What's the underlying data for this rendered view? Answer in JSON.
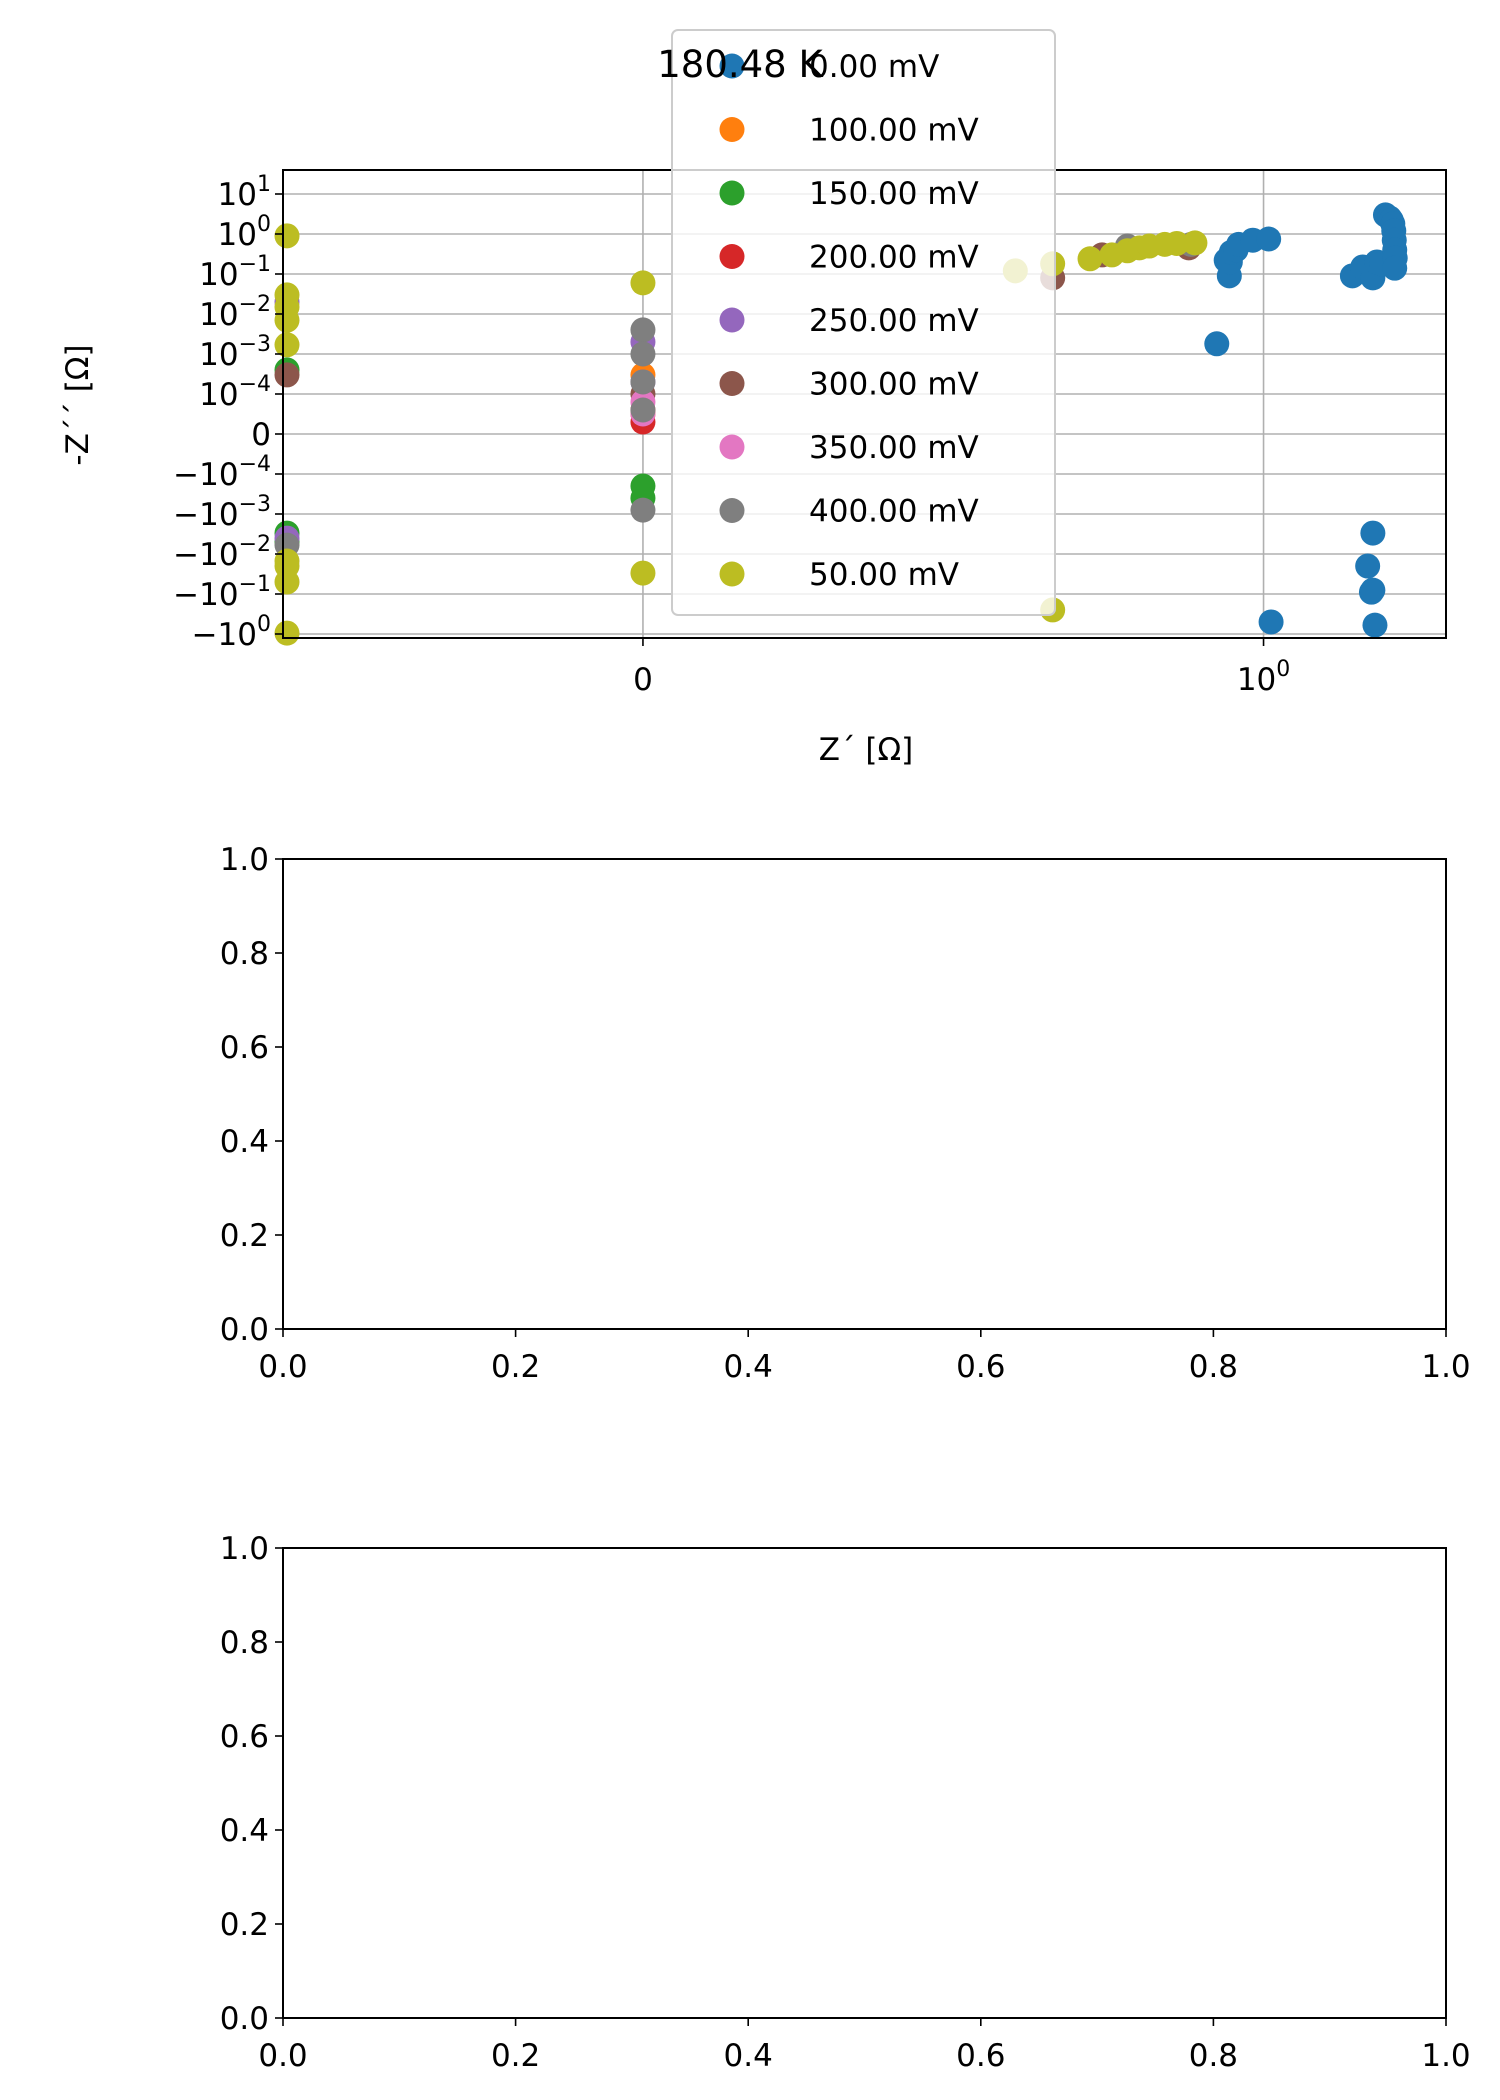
{
  "chart_data": [
    {
      "type": "scatter",
      "title": "180.48 K",
      "xlabel": "Z´ [Ω]",
      "ylabel": "-Z´´ [Ω]",
      "xscale": "symlog",
      "yscale": "symlog",
      "grid": true,
      "legend_position": "upper-center",
      "x_ticks": [
        {
          "value": 0,
          "label": "0"
        },
        {
          "value": 1,
          "label": "10",
          "exp": "0"
        }
      ],
      "y_ticks": [
        {
          "value": 10,
          "label": "10",
          "exp": "1"
        },
        {
          "value": 1,
          "label": "10",
          "exp": "0"
        },
        {
          "value": 0.1,
          "label": "10",
          "exp": "−1"
        },
        {
          "value": 0.01,
          "label": "10",
          "exp": "−2"
        },
        {
          "value": 0.001,
          "label": "10",
          "exp": "−3"
        },
        {
          "value": 0.0001,
          "label": "10",
          "exp": "−4"
        },
        {
          "value": 0,
          "label": "0"
        },
        {
          "value": -0.0001,
          "label": "−10",
          "exp": "−4"
        },
        {
          "value": -0.001,
          "label": "−10",
          "exp": "−3"
        },
        {
          "value": -0.01,
          "label": "−10",
          "exp": "−2"
        },
        {
          "value": -0.1,
          "label": "−10",
          "exp": "−1"
        },
        {
          "value": -1,
          "label": "−10",
          "exp": "0"
        }
      ],
      "series": [
        {
          "name": "0.00 mV",
          "color": "#1f77b4",
          "points": [
            [
              0.42,
              0.0018
            ],
            [
              0.5,
              0.22
            ],
            [
              0.53,
              0.09
            ],
            [
              0.54,
              0.2
            ],
            [
              0.55,
              0.35
            ],
            [
              0.6,
              0.4
            ],
            [
              0.63,
              0.55
            ],
            [
              0.82,
              0.7
            ],
            [
              1.1,
              0.75
            ],
            [
              5.2,
              0.09
            ],
            [
              6.3,
              0.15
            ],
            [
              7.6,
              0.08
            ],
            [
              8.2,
              0.2
            ],
            [
              9.6,
              3.0
            ],
            [
              9.0,
              0.18
            ],
            [
              10.4,
              2.5
            ],
            [
              10.7,
              2.2
            ],
            [
              11.0,
              1.8
            ],
            [
              11.2,
              1.2
            ],
            [
              11.3,
              0.7
            ],
            [
              11.4,
              0.4
            ],
            [
              11.5,
              0.25
            ],
            [
              11.4,
              0.14
            ],
            [
              1.15,
              -0.5
            ],
            [
              6.9,
              -0.02
            ],
            [
              7.6,
              -0.003
            ],
            [
              7.4,
              -0.09
            ],
            [
              7.6,
              -0.08
            ],
            [
              7.9,
              -0.6
            ]
          ]
        },
        {
          "name": "100.00 mV",
          "color": "#ff7f0e",
          "points": [
            [
              0.0,
              0.0003
            ],
            [
              0.0,
              5e-05
            ]
          ]
        },
        {
          "name": "150.00 mV",
          "color": "#2ca02c",
          "points": [
            [
              -0.01,
              0.0004
            ],
            [
              0.0,
              -0.0002
            ],
            [
              -0.03,
              -0.005
            ],
            [
              -0.01,
              -0.003
            ],
            [
              0.0,
              -0.0004
            ]
          ]
        },
        {
          "name": "200.00 mV",
          "color": "#d62728",
          "points": [
            [
              0.0,
              3e-05
            ],
            [
              0.0,
              6e-05
            ]
          ]
        },
        {
          "name": "250.00 mV",
          "color": "#9467bd",
          "points": [
            [
              -0.04,
              -0.004
            ],
            [
              -0.02,
              0.02
            ],
            [
              0.0,
              0.002
            ],
            [
              0.0,
              0.0002
            ]
          ]
        },
        {
          "name": "300.00 mV",
          "color": "#8c564b",
          "points": [
            [
              0.0,
              0.0001
            ],
            [
              -0.01,
              0.0003
            ],
            [
              0.05,
              0.3
            ],
            [
              0.25,
              0.45
            ],
            [
              0.02,
              0.08
            ]
          ]
        },
        {
          "name": "350.00 mV",
          "color": "#e377c2",
          "points": [
            [
              0.0,
              5e-05
            ],
            [
              0.0,
              8e-05
            ]
          ]
        },
        {
          "name": "400.00 mV",
          "color": "#7f7f7f",
          "points": [
            [
              0.0,
              0.0002
            ],
            [
              -0.02,
              -0.006
            ],
            [
              0.0,
              -0.0008
            ],
            [
              0.0,
              6e-05
            ],
            [
              0.0,
              0.004
            ],
            [
              0.0,
              0.001
            ],
            [
              0.08,
              0.5
            ],
            [
              0.26,
              0.55
            ]
          ]
        },
        {
          "name": "50.00 mV",
          "color": "#bcbd22",
          "points": [
            [
              -0.15,
              0.9
            ],
            [
              -0.05,
              0.0017
            ],
            [
              -0.03,
              0.007
            ],
            [
              -0.02,
              0.015
            ],
            [
              -0.01,
              0.03
            ],
            [
              0.0,
              0.06
            ],
            [
              0.01,
              0.12
            ],
            [
              0.02,
              0.18
            ],
            [
              0.04,
              0.24
            ],
            [
              0.06,
              0.3
            ],
            [
              0.08,
              0.38
            ],
            [
              0.1,
              0.45
            ],
            [
              0.12,
              0.5
            ],
            [
              0.16,
              0.55
            ],
            [
              0.2,
              0.58
            ],
            [
              0.28,
              0.6
            ],
            [
              -0.03,
              -0.015
            ],
            [
              -0.02,
              -0.02
            ],
            [
              -0.01,
              -0.05
            ],
            [
              0.0,
              -0.03
            ],
            [
              0.02,
              -0.25
            ],
            [
              -0.03,
              -0.95
            ]
          ]
        }
      ]
    },
    {
      "type": "scatter",
      "xlim": [
        0,
        1
      ],
      "ylim": [
        0,
        1
      ],
      "x_ticks": [
        "0.0",
        "0.2",
        "0.4",
        "0.6",
        "0.8",
        "1.0"
      ],
      "y_ticks": [
        "0.0",
        "0.2",
        "0.4",
        "0.6",
        "0.8",
        "1.0"
      ],
      "series": []
    },
    {
      "type": "scatter",
      "xlim": [
        0,
        1
      ],
      "ylim": [
        0,
        1
      ],
      "x_ticks": [
        "0.0",
        "0.2",
        "0.4",
        "0.6",
        "0.8",
        "1.0"
      ],
      "y_ticks": [
        "0.0",
        "0.2",
        "0.4",
        "0.6",
        "0.8",
        "1.0"
      ],
      "series": []
    }
  ]
}
